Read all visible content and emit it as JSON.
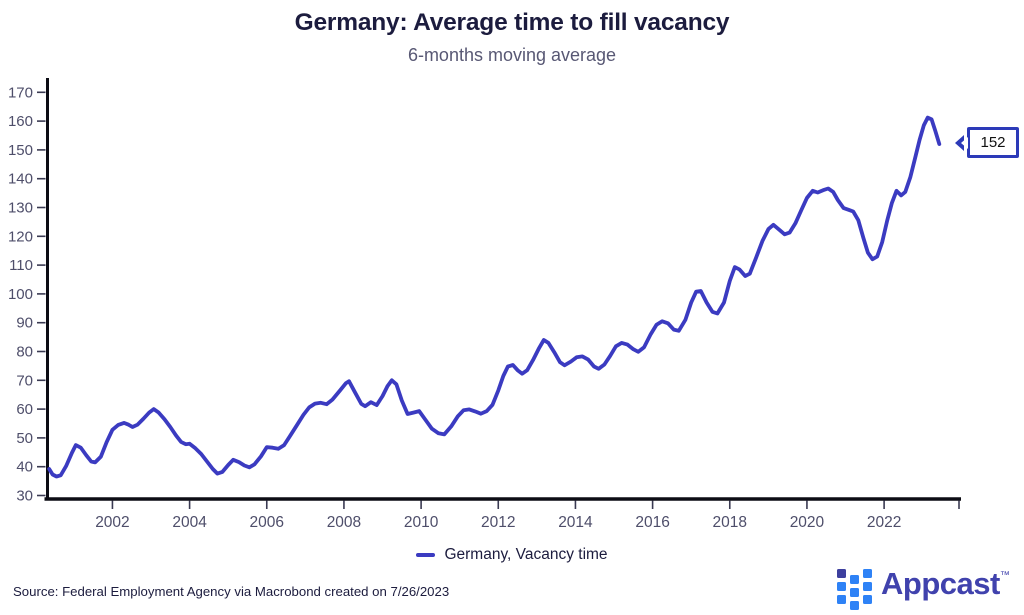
{
  "page": {
    "title": "Germany: Average time to fill vacancy",
    "subtitle": "6-months moving average",
    "source": "Source: Federal Employment Agency via Macrobond created on 7/26/2023"
  },
  "legend": {
    "label": "Germany, Vacancy time"
  },
  "callout": {
    "value": "152"
  },
  "logo": {
    "brand": "Appcast",
    "trademark": "™"
  },
  "colors": {
    "line": "#3b3bc1",
    "title": "#1c1c3e",
    "subtitle": "#585874",
    "tick_label": "#4e4e6a",
    "axis": "#0c0c14",
    "callout_border": "#2c3ab8",
    "logo_blue": "#2e82f6",
    "logo_dark": "#3d3f9e",
    "logo_text": "#4042ad"
  },
  "chart_data": {
    "type": "line",
    "title": "Germany: Average time to fill vacancy",
    "subtitle": "6-months moving average",
    "xlabel": "",
    "ylabel": "",
    "grid": false,
    "legend_position": "bottom-center",
    "x_domain": [
      2000.33,
      2023.98
    ],
    "y_domain": [
      30,
      170
    ],
    "x_ticks": [
      2002,
      2004,
      2006,
      2008,
      2010,
      2012,
      2014,
      2016,
      2018,
      2020,
      2022
    ],
    "axis_end_tick": true,
    "y_ticks": [
      30,
      40,
      50,
      60,
      70,
      80,
      90,
      100,
      110,
      120,
      130,
      140,
      150,
      160,
      170
    ],
    "end_annotation": {
      "value": 152,
      "label": "152"
    },
    "series": [
      {
        "name": "Germany, Vacancy time",
        "color": "#3b3bc1",
        "points": [
          [
            2000.36,
            39.2
          ],
          [
            2000.45,
            37.3
          ],
          [
            2000.55,
            36.6
          ],
          [
            2000.66,
            37.0
          ],
          [
            2000.8,
            40.2
          ],
          [
            2000.95,
            44.8
          ],
          [
            2001.05,
            47.5
          ],
          [
            2001.18,
            46.6
          ],
          [
            2001.32,
            44.0
          ],
          [
            2001.45,
            41.8
          ],
          [
            2001.55,
            41.5
          ],
          [
            2001.7,
            43.5
          ],
          [
            2001.85,
            48.5
          ],
          [
            2002.0,
            52.8
          ],
          [
            2002.15,
            54.5
          ],
          [
            2002.3,
            55.2
          ],
          [
            2002.42,
            54.6
          ],
          [
            2002.52,
            53.8
          ],
          [
            2002.65,
            54.6
          ],
          [
            2002.8,
            56.6
          ],
          [
            2002.95,
            58.8
          ],
          [
            2003.07,
            60.0
          ],
          [
            2003.2,
            58.8
          ],
          [
            2003.35,
            56.5
          ],
          [
            2003.5,
            53.8
          ],
          [
            2003.65,
            50.8
          ],
          [
            2003.78,
            48.6
          ],
          [
            2003.9,
            47.8
          ],
          [
            2004.0,
            48.0
          ],
          [
            2004.15,
            46.4
          ],
          [
            2004.3,
            44.4
          ],
          [
            2004.45,
            41.8
          ],
          [
            2004.6,
            39.2
          ],
          [
            2004.72,
            37.6
          ],
          [
            2004.85,
            38.2
          ],
          [
            2005.0,
            40.6
          ],
          [
            2005.13,
            42.4
          ],
          [
            2005.28,
            41.6
          ],
          [
            2005.42,
            40.4
          ],
          [
            2005.55,
            39.8
          ],
          [
            2005.68,
            40.8
          ],
          [
            2005.85,
            43.6
          ],
          [
            2006.0,
            46.8
          ],
          [
            2006.15,
            46.6
          ],
          [
            2006.3,
            46.2
          ],
          [
            2006.45,
            47.5
          ],
          [
            2006.6,
            50.6
          ],
          [
            2006.78,
            54.4
          ],
          [
            2006.95,
            58.0
          ],
          [
            2007.1,
            60.6
          ],
          [
            2007.25,
            61.9
          ],
          [
            2007.4,
            62.2
          ],
          [
            2007.55,
            61.7
          ],
          [
            2007.7,
            63.3
          ],
          [
            2007.9,
            66.5
          ],
          [
            2008.05,
            69.0
          ],
          [
            2008.13,
            69.7
          ],
          [
            2008.28,
            66.0
          ],
          [
            2008.45,
            61.8
          ],
          [
            2008.55,
            61.0
          ],
          [
            2008.7,
            62.4
          ],
          [
            2008.85,
            61.4
          ],
          [
            2009.0,
            64.5
          ],
          [
            2009.13,
            68.0
          ],
          [
            2009.24,
            70.0
          ],
          [
            2009.36,
            68.6
          ],
          [
            2009.5,
            63.0
          ],
          [
            2009.65,
            58.3
          ],
          [
            2009.8,
            58.8
          ],
          [
            2009.95,
            59.3
          ],
          [
            2010.1,
            56.5
          ],
          [
            2010.28,
            53.2
          ],
          [
            2010.45,
            51.6
          ],
          [
            2010.6,
            51.2
          ],
          [
            2010.78,
            54.0
          ],
          [
            2010.95,
            57.5
          ],
          [
            2011.1,
            59.6
          ],
          [
            2011.25,
            59.9
          ],
          [
            2011.4,
            59.2
          ],
          [
            2011.55,
            58.4
          ],
          [
            2011.7,
            59.3
          ],
          [
            2011.85,
            61.5
          ],
          [
            2012.0,
            66.5
          ],
          [
            2012.13,
            71.5
          ],
          [
            2012.25,
            74.8
          ],
          [
            2012.38,
            75.3
          ],
          [
            2012.5,
            73.5
          ],
          [
            2012.62,
            72.3
          ],
          [
            2012.75,
            73.5
          ],
          [
            2012.9,
            77.0
          ],
          [
            2013.05,
            81.0
          ],
          [
            2013.18,
            84.0
          ],
          [
            2013.3,
            83.0
          ],
          [
            2013.45,
            79.8
          ],
          [
            2013.6,
            76.3
          ],
          [
            2013.72,
            75.2
          ],
          [
            2013.88,
            76.5
          ],
          [
            2014.03,
            78.0
          ],
          [
            2014.18,
            78.3
          ],
          [
            2014.33,
            77.2
          ],
          [
            2014.48,
            74.8
          ],
          [
            2014.6,
            74.0
          ],
          [
            2014.75,
            75.5
          ],
          [
            2014.9,
            78.5
          ],
          [
            2015.05,
            81.8
          ],
          [
            2015.2,
            83.0
          ],
          [
            2015.35,
            82.4
          ],
          [
            2015.5,
            80.8
          ],
          [
            2015.63,
            79.9
          ],
          [
            2015.78,
            81.5
          ],
          [
            2015.95,
            86.0
          ],
          [
            2016.1,
            89.3
          ],
          [
            2016.25,
            90.5
          ],
          [
            2016.4,
            89.8
          ],
          [
            2016.55,
            87.6
          ],
          [
            2016.68,
            87.2
          ],
          [
            2016.85,
            91.0
          ],
          [
            2017.0,
            97.0
          ],
          [
            2017.13,
            100.8
          ],
          [
            2017.25,
            101.0
          ],
          [
            2017.4,
            97.0
          ],
          [
            2017.55,
            93.8
          ],
          [
            2017.68,
            93.2
          ],
          [
            2017.85,
            97.0
          ],
          [
            2018.0,
            104.5
          ],
          [
            2018.13,
            109.3
          ],
          [
            2018.25,
            108.5
          ],
          [
            2018.4,
            106.2
          ],
          [
            2018.52,
            107.0
          ],
          [
            2018.68,
            112.5
          ],
          [
            2018.85,
            118.5
          ],
          [
            2019.0,
            122.5
          ],
          [
            2019.13,
            124.0
          ],
          [
            2019.28,
            122.3
          ],
          [
            2019.42,
            120.7
          ],
          [
            2019.55,
            121.3
          ],
          [
            2019.7,
            124.5
          ],
          [
            2019.85,
            129.0
          ],
          [
            2020.0,
            133.3
          ],
          [
            2020.15,
            135.8
          ],
          [
            2020.28,
            135.2
          ],
          [
            2020.42,
            136.0
          ],
          [
            2020.55,
            136.6
          ],
          [
            2020.68,
            135.4
          ],
          [
            2020.8,
            132.6
          ],
          [
            2020.95,
            129.8
          ],
          [
            2021.08,
            129.2
          ],
          [
            2021.2,
            128.6
          ],
          [
            2021.33,
            125.6
          ],
          [
            2021.46,
            119.5
          ],
          [
            2021.58,
            114.3
          ],
          [
            2021.7,
            112.0
          ],
          [
            2021.82,
            113.0
          ],
          [
            2021.95,
            118.0
          ],
          [
            2022.08,
            125.5
          ],
          [
            2022.2,
            131.5
          ],
          [
            2022.32,
            135.8
          ],
          [
            2022.44,
            134.2
          ],
          [
            2022.55,
            135.4
          ],
          [
            2022.68,
            140.5
          ],
          [
            2022.8,
            147.0
          ],
          [
            2022.92,
            153.5
          ],
          [
            2023.03,
            158.5
          ],
          [
            2023.13,
            161.2
          ],
          [
            2023.23,
            160.6
          ],
          [
            2023.33,
            156.5
          ],
          [
            2023.43,
            152.0
          ]
        ]
      }
    ]
  }
}
